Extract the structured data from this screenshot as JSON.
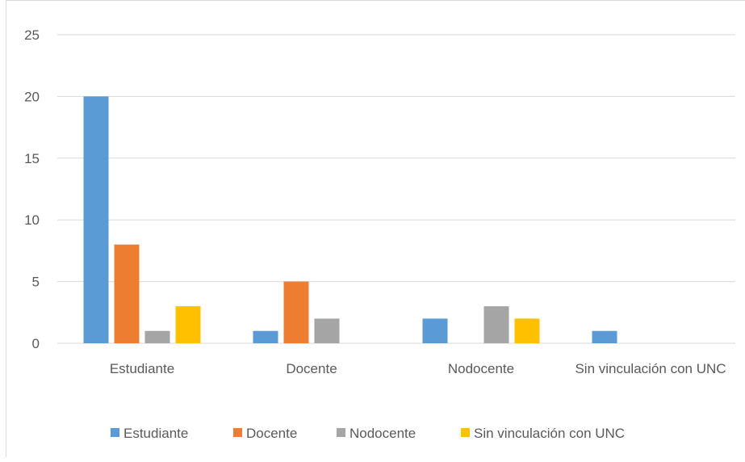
{
  "chart_data": {
    "type": "bar",
    "title": "",
    "xlabel": "",
    "ylabel": "",
    "categories": [
      "Estudiante",
      "Docente",
      "Nodocente",
      "Sin vinculación con UNC"
    ],
    "series": [
      {
        "name": "Estudiante",
        "color": "#5b9bd5",
        "values": [
          20,
          1,
          2,
          1
        ]
      },
      {
        "name": "Docente",
        "color": "#ed7d31",
        "values": [
          8,
          5,
          0,
          0
        ]
      },
      {
        "name": "Nodocente",
        "color": "#a5a5a5",
        "values": [
          1,
          2,
          3,
          0
        ]
      },
      {
        "name": "Sin vinculación con UNC",
        "color": "#ffc000",
        "values": [
          3,
          0,
          2,
          0
        ]
      }
    ],
    "ylim": [
      0,
      25
    ],
    "yticks": [
      0,
      5,
      10,
      15,
      20,
      25
    ],
    "grid": true,
    "legend_position": "bottom"
  }
}
